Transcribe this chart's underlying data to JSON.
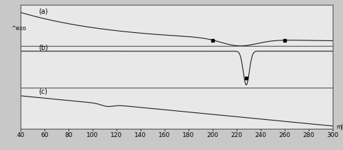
{
  "background_color": "#c8c8c8",
  "panel_color": "#e8e8e8",
  "line_color": "#1a1a1a",
  "separator_color": "#555555",
  "label_a": "(a)",
  "label_b": "(b)",
  "label_c": "(c)",
  "ylabel": "^exo",
  "xlim": [
    40,
    300
  ],
  "xticks": [
    40,
    60,
    80,
    100,
    120,
    140,
    160,
    180,
    200,
    220,
    240,
    260,
    280,
    300
  ],
  "tick_fontsize": 6.5,
  "ylabel_fontsize": 6,
  "label_fontsize": 7,
  "panel_a_ylim": [
    0.0,
    1.0
  ],
  "panel_b_ylim": [
    -1.0,
    0.4
  ],
  "panel_c_ylim": [
    -0.5,
    0.8
  ]
}
